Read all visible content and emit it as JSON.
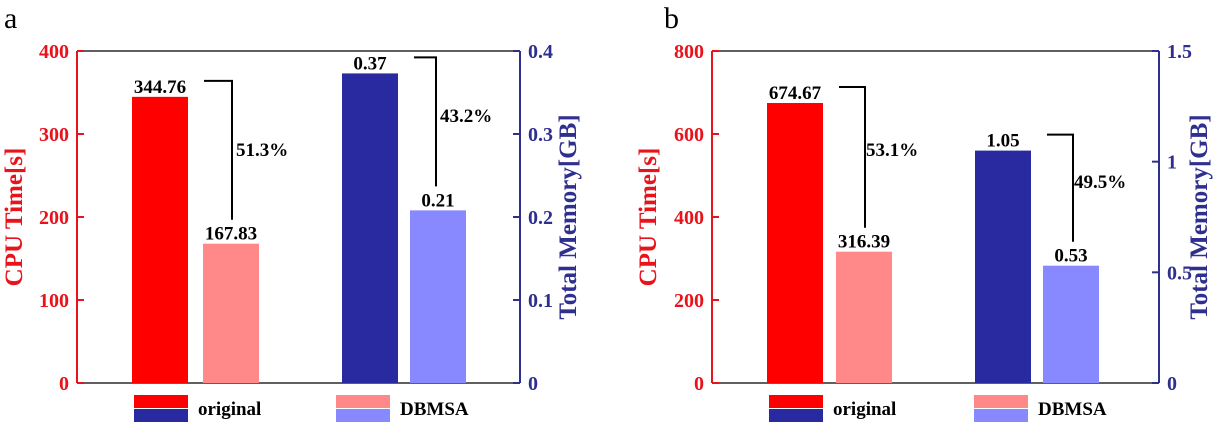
{
  "colors": {
    "left_axis": "#e8131b",
    "right_axis": "#2e2f8f",
    "cpu_original": "#ff0000",
    "cpu_dbmsa": "#ff8888",
    "mem_original": "#2a2aa0",
    "mem_dbmsa": "#8888ff"
  },
  "legend": {
    "original_label": "original",
    "dbmsa_label": "DBMSA"
  },
  "chart_data": [
    {
      "type": "bar",
      "panel_label": "a",
      "left_axis": {
        "label": "CPU Time[s]",
        "range": [
          0,
          400
        ],
        "ticks": [
          0,
          100,
          200,
          300,
          400
        ],
        "tick_labels": [
          "0",
          "100",
          "200",
          "300",
          "400"
        ]
      },
      "right_axis": {
        "label": "Total Memory[GB]",
        "range": [
          0,
          0.4
        ],
        "ticks": [
          0,
          0.1,
          0.2,
          0.3,
          0.4
        ],
        "tick_labels": [
          "0",
          "0.1",
          "0.2",
          "0.3",
          "0.4"
        ]
      },
      "series": [
        {
          "name": "CPU Time original",
          "axis": "left",
          "value": 344.76,
          "label": "344.76",
          "color_key": "cpu_original"
        },
        {
          "name": "CPU Time DBMSA",
          "axis": "left",
          "value": 167.83,
          "label": "167.83",
          "color_key": "cpu_dbmsa"
        },
        {
          "name": "Total Memory original",
          "axis": "right",
          "value": 0.373,
          "label": "0.37",
          "color_key": "mem_original"
        },
        {
          "name": "Total Memory DBMSA",
          "axis": "right",
          "value": 0.208,
          "label": "0.21",
          "color_key": "mem_dbmsa"
        }
      ],
      "reductions": [
        {
          "text": "51.3%",
          "from": 0,
          "to": 1
        },
        {
          "text": "43.2%",
          "from": 2,
          "to": 3
        }
      ]
    },
    {
      "type": "bar",
      "panel_label": "b",
      "left_axis": {
        "label": "CPU Time[s]",
        "range": [
          0,
          800
        ],
        "ticks": [
          0,
          200,
          400,
          600,
          800
        ],
        "tick_labels": [
          "0",
          "200",
          "400",
          "600",
          "800"
        ]
      },
      "right_axis": {
        "label": "Total Memory[GB]",
        "range": [
          0,
          1.5
        ],
        "ticks": [
          0,
          0.5,
          1,
          1.5
        ],
        "tick_labels": [
          "0",
          "0.5",
          "1",
          "1.5"
        ]
      },
      "series": [
        {
          "name": "CPU Time original",
          "axis": "left",
          "value": 674.67,
          "label": "674.67",
          "color_key": "cpu_original"
        },
        {
          "name": "CPU Time DBMSA",
          "axis": "left",
          "value": 316.39,
          "label": "316.39",
          "color_key": "cpu_dbmsa"
        },
        {
          "name": "Total Memory original",
          "axis": "right",
          "value": 1.05,
          "label": "1.05",
          "color_key": "mem_original"
        },
        {
          "name": "Total Memory DBMSA",
          "axis": "right",
          "value": 0.53,
          "label": "0.53",
          "color_key": "mem_dbmsa"
        }
      ],
      "reductions": [
        {
          "text": "53.1%",
          "from": 0,
          "to": 1
        },
        {
          "text": "49.5%",
          "from": 2,
          "to": 3
        }
      ]
    }
  ]
}
